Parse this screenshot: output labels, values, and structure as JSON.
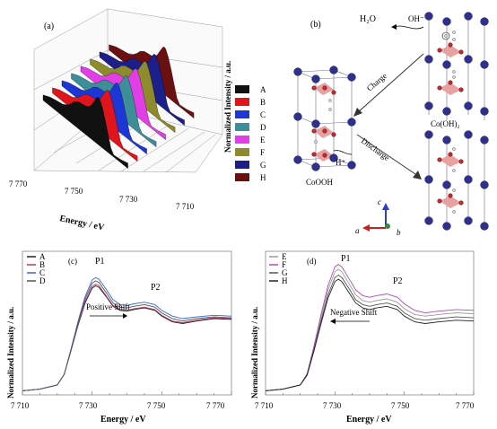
{
  "panel_a": {
    "label": "(a)",
    "xlabel": "Energy / eV",
    "zlabel": "Normalized Intensity / a.u.",
    "x_ticks": [
      "7 770",
      "7 750",
      "7 730"
    ],
    "y_ticks": [
      "7 710"
    ],
    "legend": [
      {
        "name": "A",
        "color": "#111111"
      },
      {
        "name": "B",
        "color": "#e0151b"
      },
      {
        "name": "C",
        "color": "#1d37d6"
      },
      {
        "name": "D",
        "color": "#3e8e9a"
      },
      {
        "name": "E",
        "color": "#e23ee6"
      },
      {
        "name": "F",
        "color": "#8d8b2b"
      },
      {
        "name": "G",
        "color": "#1c1f8a"
      },
      {
        "name": "H",
        "color": "#6b1010"
      }
    ]
  },
  "panel_b": {
    "label": "(b)",
    "h2o": "H₂O",
    "oh": "OH⁻",
    "h_plus": "H⁺",
    "charge": "Charge",
    "discharge": "Discharge",
    "cooh": "CoOOH",
    "coOH2": "Co(OH)₂",
    "axis_c": "c",
    "axis_a": "a",
    "axis_b": "b"
  },
  "chart_data": [
    {
      "type": "line",
      "panel": "(c)",
      "xlabel": "Energy / eV",
      "ylabel": "Normalized Intensity / a.u.",
      "xlim": [
        7710,
        7770
      ],
      "x_ticks": [
        "7 710",
        "7 730",
        "7 750",
        "7 770"
      ],
      "annotations": [
        "P1",
        "P2",
        "Positive Shift"
      ],
      "series": [
        {
          "name": "A",
          "color": "#222222",
          "x": [
            7710,
            7715,
            7720,
            7722,
            7724,
            7726,
            7728,
            7730,
            7731,
            7732,
            7734,
            7736,
            7738,
            7740,
            7742,
            7745,
            7748,
            7750,
            7753,
            7756,
            7760,
            7765,
            7770
          ],
          "y": [
            0.05,
            0.07,
            0.12,
            0.25,
            0.55,
            0.85,
            1.12,
            1.3,
            1.33,
            1.31,
            1.2,
            1.08,
            1.03,
            1.02,
            1.04,
            1.06,
            1.03,
            0.96,
            0.89,
            0.87,
            0.9,
            0.93,
            0.92
          ]
        },
        {
          "name": "B",
          "color": "#b03a6a",
          "x": [
            7710,
            7715,
            7720,
            7722,
            7724,
            7726,
            7728,
            7730,
            7731,
            7732,
            7734,
            7736,
            7738,
            7740,
            7742,
            7745,
            7748,
            7750,
            7753,
            7756,
            7760,
            7765,
            7770
          ],
          "y": [
            0.05,
            0.07,
            0.12,
            0.25,
            0.55,
            0.86,
            1.14,
            1.32,
            1.35,
            1.33,
            1.21,
            1.09,
            1.04,
            1.03,
            1.05,
            1.07,
            1.04,
            0.97,
            0.9,
            0.88,
            0.91,
            0.94,
            0.93
          ]
        },
        {
          "name": "C",
          "color": "#3c64d8",
          "x": [
            7710,
            7715,
            7720,
            7722,
            7724,
            7726,
            7728,
            7730,
            7731,
            7732,
            7734,
            7736,
            7738,
            7740,
            7742,
            7745,
            7748,
            7750,
            7753,
            7756,
            7760,
            7765,
            7770
          ],
          "y": [
            0.05,
            0.07,
            0.12,
            0.25,
            0.57,
            0.9,
            1.2,
            1.4,
            1.43,
            1.41,
            1.29,
            1.16,
            1.1,
            1.09,
            1.11,
            1.13,
            1.1,
            1.03,
            0.96,
            0.93,
            0.95,
            0.97,
            0.96
          ]
        },
        {
          "name": "D",
          "color": "#555555",
          "x": [
            7710,
            7715,
            7720,
            7722,
            7724,
            7726,
            7728,
            7730,
            7731,
            7732,
            7734,
            7736,
            7738,
            7740,
            7742,
            7745,
            7748,
            7750,
            7753,
            7756,
            7760,
            7765,
            7770
          ],
          "y": [
            0.05,
            0.07,
            0.12,
            0.25,
            0.56,
            0.88,
            1.17,
            1.36,
            1.39,
            1.37,
            1.25,
            1.12,
            1.07,
            1.06,
            1.08,
            1.1,
            1.07,
            1.0,
            0.93,
            0.9,
            0.93,
            0.95,
            0.94
          ]
        }
      ]
    },
    {
      "type": "line",
      "panel": "(d)",
      "xlabel": "Energy / eV",
      "ylabel": "Normalized Intensity / a.u.",
      "xlim": [
        7710,
        7770
      ],
      "x_ticks": [
        "7 710",
        "7 730",
        "7 750",
        "7 770"
      ],
      "annotations": [
        "P1",
        "P2",
        "Negative Shift"
      ],
      "series": [
        {
          "name": "E",
          "color": "#999999",
          "x": [
            7710,
            7715,
            7720,
            7722,
            7724,
            7726,
            7728,
            7730,
            7731,
            7732,
            7734,
            7736,
            7738,
            7740,
            7742,
            7745,
            7748,
            7750,
            7753,
            7756,
            7760,
            7765,
            7770
          ],
          "y": [
            0.05,
            0.07,
            0.12,
            0.25,
            0.58,
            0.94,
            1.28,
            1.5,
            1.53,
            1.5,
            1.36,
            1.22,
            1.15,
            1.13,
            1.15,
            1.17,
            1.13,
            1.05,
            0.98,
            0.96,
            0.98,
            1.0,
            0.99
          ]
        },
        {
          "name": "F",
          "color": "#b04bb8",
          "x": [
            7710,
            7715,
            7720,
            7722,
            7724,
            7726,
            7728,
            7730,
            7731,
            7732,
            7734,
            7736,
            7738,
            7740,
            7742,
            7745,
            7748,
            7750,
            7753,
            7756,
            7760,
            7765,
            7770
          ],
          "y": [
            0.05,
            0.07,
            0.12,
            0.26,
            0.6,
            0.98,
            1.33,
            1.56,
            1.59,
            1.56,
            1.42,
            1.28,
            1.21,
            1.19,
            1.21,
            1.23,
            1.19,
            1.11,
            1.03,
            1.0,
            1.02,
            1.04,
            1.03
          ]
        },
        {
          "name": "G",
          "color": "#555555",
          "x": [
            7710,
            7715,
            7720,
            7722,
            7724,
            7726,
            7728,
            7730,
            7731,
            7732,
            7734,
            7736,
            7738,
            7740,
            7742,
            7745,
            7748,
            7750,
            7753,
            7756,
            7760,
            7765,
            7770
          ],
          "y": [
            0.05,
            0.07,
            0.12,
            0.25,
            0.56,
            0.9,
            1.22,
            1.43,
            1.46,
            1.43,
            1.3,
            1.16,
            1.1,
            1.08,
            1.1,
            1.12,
            1.08,
            1.0,
            0.93,
            0.91,
            0.93,
            0.95,
            0.94
          ]
        },
        {
          "name": "H",
          "color": "#222222",
          "x": [
            7710,
            7715,
            7720,
            7722,
            7724,
            7726,
            7728,
            7730,
            7731,
            7732,
            7734,
            7736,
            7738,
            7740,
            7742,
            7745,
            7748,
            7750,
            7753,
            7756,
            7760,
            7765,
            7770
          ],
          "y": [
            0.05,
            0.07,
            0.12,
            0.24,
            0.54,
            0.87,
            1.18,
            1.38,
            1.41,
            1.38,
            1.25,
            1.12,
            1.06,
            1.04,
            1.06,
            1.08,
            1.04,
            0.96,
            0.89,
            0.87,
            0.89,
            0.91,
            0.9
          ]
        }
      ]
    }
  ]
}
